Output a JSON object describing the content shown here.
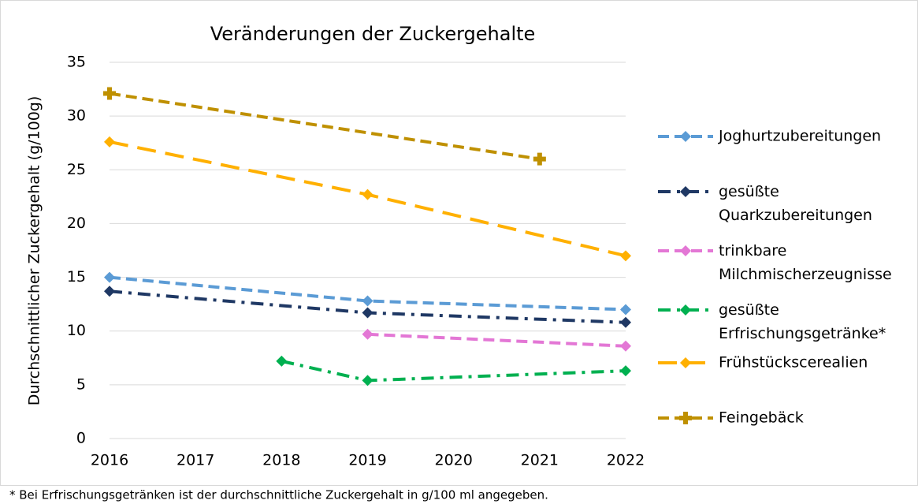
{
  "chart_data": {
    "type": "line",
    "title": "Veränderungen der Zuckergehalte",
    "y_label": "Durchschnittlicher Zuckergehalt (g/100g)",
    "footnote": "* Bei Erfrischungsgetränken ist der durchschnittliche Zuckergehalt in g/100 ml angegeben.",
    "xlim": [
      2016,
      2022
    ],
    "xticks": [
      2016,
      2017,
      2018,
      2019,
      2020,
      2021,
      2022
    ],
    "ylim": [
      0,
      35
    ],
    "yticks": [
      0,
      5,
      10,
      15,
      20,
      25,
      30,
      35
    ],
    "grid": true,
    "legend": "right",
    "series": [
      {
        "name": "Joghurtzubereitungen",
        "color": "#5b9bd5",
        "linestyle": "dash",
        "marker": "diamond",
        "x": [
          2016,
          2019,
          2022
        ],
        "values": [
          15,
          12.8,
          12
        ]
      },
      {
        "name": "gesüßte Quarkzubereitungen",
        "color": "#1f3864",
        "linestyle": "dashdot",
        "marker": "diamond",
        "x": [
          2016,
          2019,
          2022
        ],
        "values": [
          13.7,
          11.7,
          10.8
        ]
      },
      {
        "name": "trinkbare Milchmischerzeugnisse",
        "color": "#e377d5",
        "linestyle": "dash",
        "marker": "diamond",
        "x": [
          2019,
          2022
        ],
        "values": [
          9.7,
          8.6
        ]
      },
      {
        "name": "gesüßte Erfrischungsgetränke*",
        "color": "#00b050",
        "linestyle": "dashdot",
        "marker": "diamond",
        "x": [
          2018,
          2019,
          2022
        ],
        "values": [
          7.2,
          5.4,
          6.3
        ]
      },
      {
        "name": "Frühstückscerealien",
        "color": "#ffb000",
        "linestyle": "longdash",
        "marker": "diamond",
        "x": [
          2016,
          2019,
          2022
        ],
        "values": [
          27.6,
          22.7,
          17
        ]
      },
      {
        "name": "Feingebäck",
        "color": "#bf9000",
        "linestyle": "dash",
        "marker": "plus",
        "x": [
          2016,
          2021
        ],
        "values": [
          32.1,
          26
        ]
      }
    ]
  }
}
